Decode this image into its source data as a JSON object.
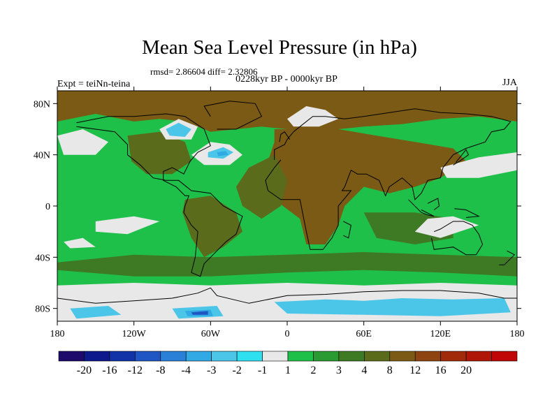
{
  "chart_data": {
    "type": "heatmap",
    "title": "Mean Sea Level Pressure (in hPa)",
    "stats": "rmsd= 2.86604  diff= 2.32806",
    "subtitle": "0228kyr BP - 0000kyr BP",
    "left_label": "Expt = teiNn-teina",
    "right_label": "JJA",
    "lon_range": [
      -180,
      180
    ],
    "lat_range": [
      -90,
      90
    ],
    "x_ticks": [
      {
        "value": -180,
        "label": "180"
      },
      {
        "value": -120,
        "label": "120W"
      },
      {
        "value": -60,
        "label": "60W"
      },
      {
        "value": 0,
        "label": "0"
      },
      {
        "value": 60,
        "label": "60E"
      },
      {
        "value": 120,
        "label": "120E"
      },
      {
        "value": 180,
        "label": "180"
      }
    ],
    "y_ticks": [
      {
        "value": 80,
        "label": "80N"
      },
      {
        "value": 40,
        "label": "40N"
      },
      {
        "value": 0,
        "label": "0"
      },
      {
        "value": -40,
        "label": "40S"
      },
      {
        "value": -80,
        "label": "80S"
      }
    ],
    "colorbar": {
      "colors": [
        "#1d0a6b",
        "#0d1a8c",
        "#1233a8",
        "#1f56c4",
        "#2a7fd6",
        "#31a9e4",
        "#4cc6e8",
        "#2fe0f0",
        "#e8e8e8",
        "#1fc04a",
        "#2a9a32",
        "#3e7a24",
        "#5a6b1c",
        "#7a5a14",
        "#8e4410",
        "#a02a0a",
        "#b01608",
        "#c00606"
      ],
      "labels": [
        "-20",
        "-16",
        "-12",
        "-8",
        "-4",
        "-3",
        "-2",
        "-1",
        "1",
        "2",
        "3",
        "4",
        "8",
        "12",
        "16",
        "20"
      ]
    },
    "regions": {
      "background": "#1fc04a",
      "brown_north": "#7a5a14",
      "olive": "#5a6b1c",
      "dark_green": "#3e7a24",
      "gray": "#e8e8e8",
      "cyan": "#4cc6e8",
      "teal": "#31a9e4",
      "blue": "#1f56c4"
    }
  }
}
